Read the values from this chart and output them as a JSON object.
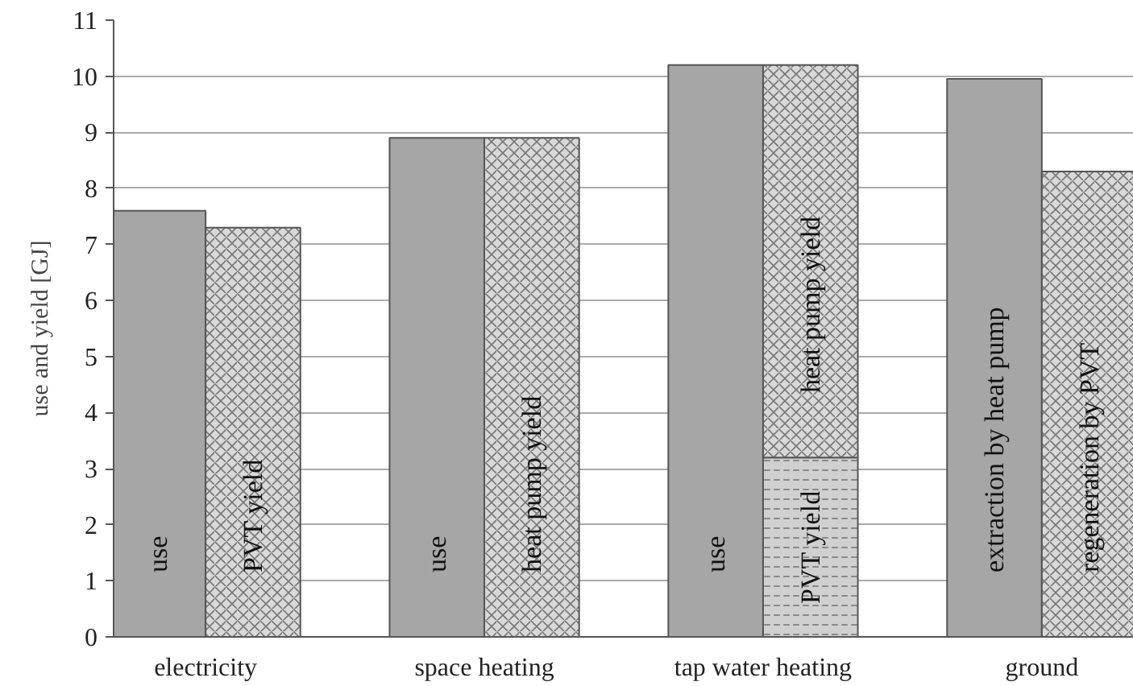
{
  "chart_data": {
    "type": "bar",
    "ylabel": "use and yield [GJ]",
    "categories": [
      "electricity",
      "space heating",
      "tap water heating",
      "ground"
    ],
    "series": [
      {
        "color": "#a6a6a6",
        "values": [
          7.6,
          8.9,
          10.2,
          9.95
        ],
        "value_labels": [
          "use",
          "use",
          "use",
          "extraction by heat pump"
        ]
      },
      {
        "color": "#d0d0d0",
        "values": [
          null,
          null,
          3.2,
          null
        ],
        "value_labels": [
          null,
          null,
          "PVT yield",
          null
        ]
      },
      {
        "color": "#d9d9d9",
        "values": [
          7.3,
          8.9,
          7.0,
          8.3
        ],
        "base": [
          0,
          0,
          3.2,
          0
        ],
        "value_labels": [
          "PVT yield",
          "heat pump yield",
          "heat pump yield",
          "regeneration by PVT"
        ]
      }
    ],
    "ylim": [
      0,
      11
    ],
    "yticks": [
      0,
      1,
      2,
      3,
      4,
      5,
      6,
      7,
      8,
      9,
      10,
      11
    ],
    "grid": "y"
  }
}
